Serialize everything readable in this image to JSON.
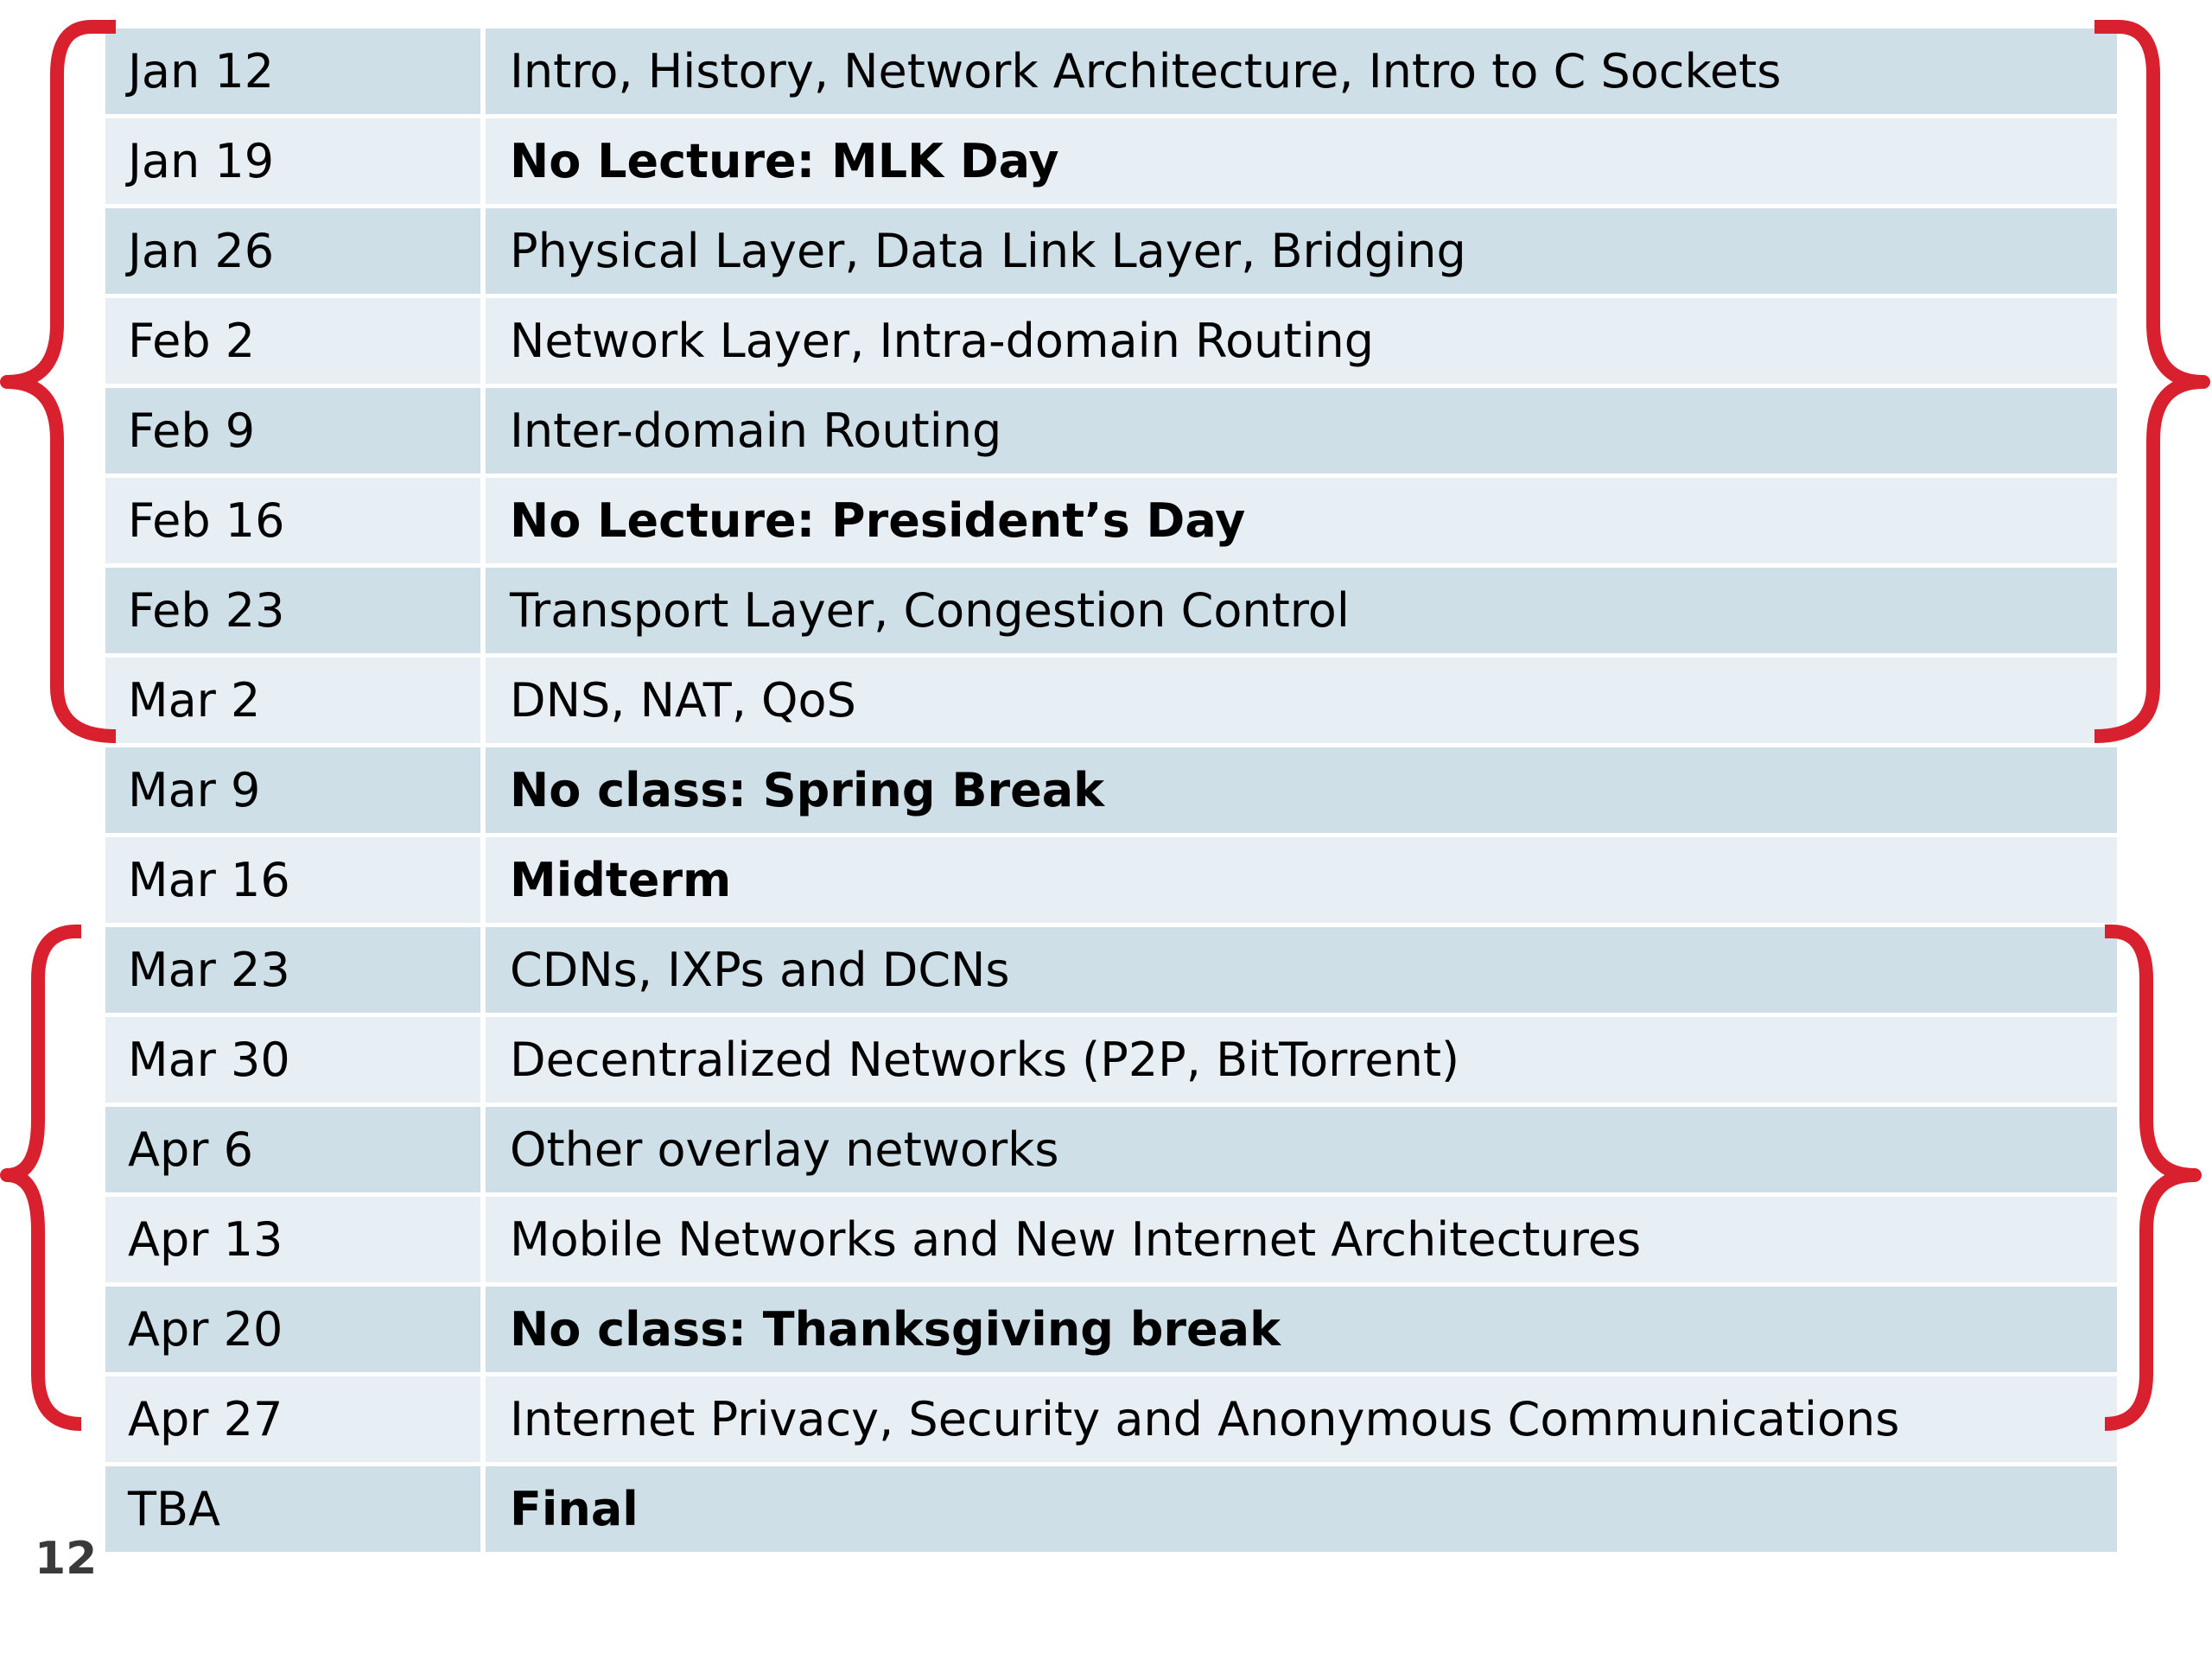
{
  "schedule": [
    {
      "date": "Jan 12",
      "topic": "Intro, History, Network Architecture, Intro to C Sockets",
      "emphasis": false
    },
    {
      "date": "Jan 19",
      "topic": "No Lecture: MLK Day",
      "emphasis": true
    },
    {
      "date": "Jan 26",
      "topic": "Physical Layer, Data Link Layer, Bridging",
      "emphasis": false
    },
    {
      "date": "Feb 2",
      "topic": "Network Layer, Intra-domain Routing",
      "emphasis": false
    },
    {
      "date": "Feb 9",
      "topic": "Inter-domain Routing",
      "emphasis": false
    },
    {
      "date": "Feb 16",
      "topic": "No Lecture: President’s Day",
      "emphasis": true
    },
    {
      "date": "Feb 23",
      "topic": "Transport Layer, Congestion Control",
      "emphasis": false
    },
    {
      "date": "Mar 2",
      "topic": "DNS, NAT, QoS",
      "emphasis": false
    },
    {
      "date": "Mar 9",
      "topic": "No class: Spring Break",
      "emphasis": true
    },
    {
      "date": "Mar 16",
      "topic": "Midterm",
      "emphasis": true
    },
    {
      "date": "Mar 23",
      "topic": "CDNs, IXPs and DCNs",
      "emphasis": false
    },
    {
      "date": "Mar 30",
      "topic": "Decentralized Networks (P2P, BitTorrent)",
      "emphasis": false
    },
    {
      "date": "Apr 6",
      "topic": "Other overlay networks",
      "emphasis": false
    },
    {
      "date": "Apr 13",
      "topic": "Mobile Networks and New Internet Architectures",
      "emphasis": false
    },
    {
      "date": "Apr 20",
      "topic": "No class: Thanksgiving break",
      "emphasis": true
    },
    {
      "date": "Apr 27",
      "topic": "Internet Privacy, Security and Anonymous Communications",
      "emphasis": false
    },
    {
      "date": "TBA",
      "topic": "Final",
      "emphasis": true
    }
  ],
  "slide_number": "12",
  "colors": {
    "row_band_a": "#cfdfe7",
    "row_band_b": "#e8eff4",
    "brace": "#d8202e",
    "slide_number": "#3a3a3a"
  }
}
